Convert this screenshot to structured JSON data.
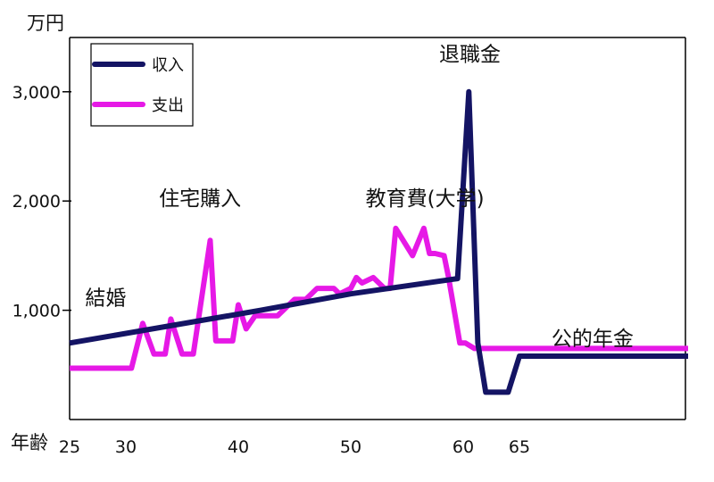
{
  "chart_data": {
    "type": "line",
    "ylabel": "万円",
    "xlabel": "年齢",
    "xlim": [
      25,
      80
    ],
    "ylim": [
      0,
      3400
    ],
    "x_ticks": [
      {
        "value": 25,
        "label": "25"
      },
      {
        "value": 30,
        "label": "30"
      },
      {
        "value": 40,
        "label": "40"
      },
      {
        "value": 50,
        "label": "50"
      },
      {
        "value": 60,
        "label": "60"
      },
      {
        "value": 65,
        "label": "65"
      }
    ],
    "y_ticks": [
      {
        "value": 1000,
        "label": "1,000"
      },
      {
        "value": 2000,
        "label": "2,000"
      },
      {
        "value": 3000,
        "label": "3,000"
      }
    ],
    "legend": {
      "position": "top-left"
    },
    "series": [
      {
        "name": "収入",
        "color": "#141464",
        "x": [
          25,
          42,
          50,
          59.5,
          60.5,
          61.3,
          62,
          64,
          65,
          80
        ],
        "y": [
          700,
          1000,
          1150,
          1290,
          3000,
          700,
          250,
          250,
          580,
          580
        ]
      },
      {
        "name": "支出",
        "color": "#e619e6",
        "x": [
          25,
          27,
          28.5,
          30.5,
          31.5,
          32.5,
          33,
          33.5,
          34,
          35,
          36,
          37.5,
          38,
          39.5,
          40,
          40.7,
          41.5,
          42.5,
          43.5,
          45,
          46,
          47,
          48.5,
          49,
          50,
          50.5,
          51,
          52,
          53,
          53.5,
          54,
          55.5,
          56.5,
          57,
          57.5,
          58.3,
          58.7,
          59.7,
          60.2,
          61,
          62,
          65,
          70,
          80
        ],
        "y": [
          470,
          470,
          470,
          470,
          880,
          600,
          600,
          600,
          920,
          600,
          600,
          1640,
          720,
          720,
          1050,
          830,
          950,
          950,
          950,
          1100,
          1100,
          1200,
          1200,
          1150,
          1200,
          1300,
          1250,
          1300,
          1200,
          1200,
          1750,
          1500,
          1750,
          1520,
          1520,
          1500,
          1300,
          700,
          700,
          650,
          650,
          650,
          650,
          650
        ]
      }
    ],
    "annotations": [
      {
        "text": "結婚",
        "x": 28.2,
        "y": 1050
      },
      {
        "text": "住宅購入",
        "x": 36.6,
        "y": 1960
      },
      {
        "text": "教育費(大学)",
        "x": 56.6,
        "y": 1960
      },
      {
        "text": "退職金",
        "x": 60.6,
        "y": 3280
      },
      {
        "text": "公的年金",
        "x": 71.5,
        "y": 680
      }
    ]
  }
}
